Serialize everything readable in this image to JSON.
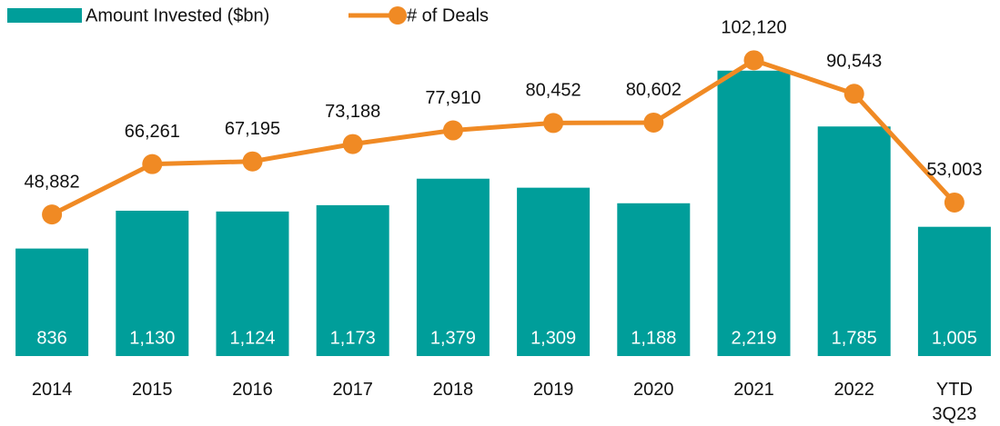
{
  "chart_data": {
    "type": "combo",
    "categories": [
      "2014",
      "2015",
      "2016",
      "2017",
      "2018",
      "2019",
      "2020",
      "2021",
      "2022",
      "YTD 3Q23"
    ],
    "series": [
      {
        "name": "Amount Invested ($bn)",
        "type": "bar",
        "color": "#009e9a",
        "values": [
          836,
          1130,
          1124,
          1173,
          1379,
          1309,
          1188,
          2219,
          1785,
          1005
        ],
        "value_labels": [
          "836",
          "1,130",
          "1,124",
          "1,173",
          "1,379",
          "1,309",
          "1,188",
          "2,219",
          "1,785",
          "1,005"
        ]
      },
      {
        "name": "# of Deals",
        "type": "line",
        "axis": "y2",
        "color": "#f08a24",
        "values": [
          48882,
          66261,
          67195,
          73188,
          77910,
          80452,
          80602,
          102120,
          90543,
          53003
        ],
        "value_labels": [
          "48,882",
          "66,261",
          "67,195",
          "73,188",
          "77,910",
          "80,452",
          "80,602",
          "102,120",
          "90,543",
          "53,003"
        ]
      }
    ],
    "ylim": [
      0,
      2500
    ],
    "y2lim": [
      0,
      111000
    ],
    "legend": "top-left"
  }
}
